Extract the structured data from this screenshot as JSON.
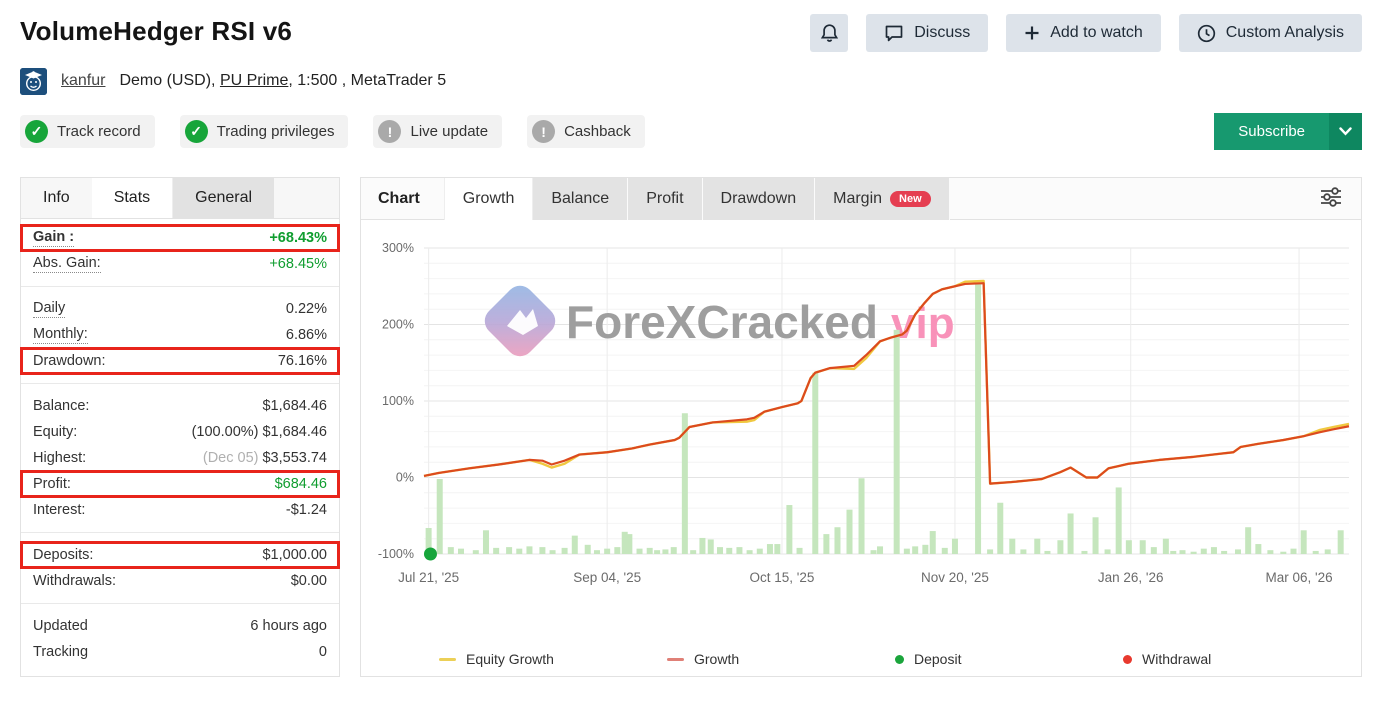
{
  "header": {
    "title": "VolumeHedger RSI v6",
    "actions": {
      "discuss": "Discuss",
      "add_to_watch": "Add to watch",
      "custom_analysis": "Custom Analysis"
    }
  },
  "account": {
    "username": "kanfur",
    "details_prefix": "Demo (USD),",
    "broker_link": "PU Prime",
    "details_suffix": ", 1:500 , MetaTrader 5"
  },
  "badges": [
    {
      "label": "Track record",
      "status": "ok"
    },
    {
      "label": "Trading privileges",
      "status": "ok"
    },
    {
      "label": "Live update",
      "status": "warn"
    },
    {
      "label": "Cashback",
      "status": "warn"
    }
  ],
  "subscribe": {
    "label": "Subscribe"
  },
  "info_panel": {
    "tabs": [
      {
        "label": "Info",
        "style": "plain"
      },
      {
        "label": "Stats",
        "style": "active"
      },
      {
        "label": "General",
        "style": "gray"
      }
    ],
    "rows": [
      {
        "label": "Gain :",
        "value": "+68.43%",
        "green": true,
        "bold": true,
        "hl": true,
        "dotted": true
      },
      {
        "label": "Abs. Gain:",
        "value": "+68.45%",
        "green": true,
        "dotted": true,
        "divider_after": true
      },
      {
        "label": "Daily",
        "value": "0.22%",
        "dotted": true
      },
      {
        "label": "Monthly:",
        "value": "6.86%",
        "dotted": true
      },
      {
        "label": "Drawdown:",
        "value": "76.16%",
        "hl": true,
        "divider_after": true
      },
      {
        "label": "Balance:",
        "value": "$1,684.46"
      },
      {
        "label": "Equity:",
        "note": "(100.00%)",
        "note_dark": true,
        "value": "$1,684.46"
      },
      {
        "label": "Highest:",
        "note": "(Dec 05)",
        "value": "$3,553.74"
      },
      {
        "label": "Profit:",
        "value": "$684.46",
        "green": true,
        "hl": true
      },
      {
        "label": "Interest:",
        "value": "-$1.24",
        "divider_after": true
      },
      {
        "label": "Deposits:",
        "value": "$1,000.00",
        "hl": true
      },
      {
        "label": "Withdrawals:",
        "value": "$0.00",
        "divider_after": true
      },
      {
        "label": "Updated",
        "value": "6 hours ago"
      },
      {
        "label": "Tracking",
        "value": "0"
      }
    ]
  },
  "chart_panel": {
    "label": "Chart",
    "tabs": [
      {
        "label": "Growth",
        "active": true
      },
      {
        "label": "Balance"
      },
      {
        "label": "Profit"
      },
      {
        "label": "Drawdown"
      },
      {
        "label": "Margin",
        "badge": "New"
      }
    ],
    "watermark": {
      "brand": "ForeXCracked",
      "suffix": "vip"
    }
  },
  "chart_data": {
    "type": "line",
    "title": "Growth chart with deposit volume bars",
    "y_axis": {
      "unit": "%",
      "range": [
        -100,
        300
      ],
      "ticks": [
        300,
        200,
        100,
        0,
        -100
      ],
      "minor_step": 20
    },
    "x_axis": {
      "ticks": [
        {
          "label": "Jul 21, '25",
          "pos": 0.005
        },
        {
          "label": "Sep 04, '25",
          "pos": 0.198
        },
        {
          "label": "Oct 15, '25",
          "pos": 0.387
        },
        {
          "label": "Nov 20, '25",
          "pos": 0.574
        },
        {
          "label": "Jan 26, '26",
          "pos": 0.764
        },
        {
          "label": "Mar 06, '26",
          "pos": 0.946
        }
      ]
    },
    "growth_pct": [
      [
        0.0,
        2
      ],
      [
        0.016,
        6
      ],
      [
        0.049,
        12
      ],
      [
        0.081,
        17
      ],
      [
        0.114,
        23
      ],
      [
        0.128,
        22
      ],
      [
        0.138,
        17
      ],
      [
        0.152,
        22
      ],
      [
        0.168,
        30
      ],
      [
        0.198,
        33
      ],
      [
        0.225,
        38
      ],
      [
        0.244,
        43
      ],
      [
        0.271,
        49
      ],
      [
        0.276,
        52
      ],
      [
        0.287,
        66
      ],
      [
        0.312,
        72
      ],
      [
        0.349,
        76
      ],
      [
        0.357,
        78
      ],
      [
        0.368,
        86
      ],
      [
        0.387,
        92
      ],
      [
        0.404,
        97
      ],
      [
        0.408,
        100
      ],
      [
        0.418,
        130
      ],
      [
        0.423,
        137
      ],
      [
        0.439,
        143
      ],
      [
        0.465,
        146
      ],
      [
        0.478,
        160
      ],
      [
        0.493,
        178
      ],
      [
        0.505,
        183
      ],
      [
        0.517,
        187
      ],
      [
        0.522,
        192
      ],
      [
        0.531,
        213
      ],
      [
        0.541,
        228
      ],
      [
        0.55,
        240
      ],
      [
        0.56,
        246
      ],
      [
        0.574,
        250
      ],
      [
        0.585,
        253
      ],
      [
        0.605,
        254
      ],
      [
        0.612,
        -8
      ],
      [
        0.635,
        -6
      ],
      [
        0.652,
        -4
      ],
      [
        0.668,
        -2
      ],
      [
        0.688,
        7
      ],
      [
        0.699,
        13
      ],
      [
        0.716,
        0
      ],
      [
        0.728,
        0
      ],
      [
        0.74,
        12
      ],
      [
        0.751,
        15
      ],
      [
        0.762,
        18
      ],
      [
        0.795,
        23
      ],
      [
        0.832,
        27
      ],
      [
        0.86,
        31
      ],
      [
        0.875,
        33
      ],
      [
        0.883,
        40
      ],
      [
        0.902,
        44
      ],
      [
        0.929,
        49
      ],
      [
        0.951,
        54
      ],
      [
        0.968,
        59
      ],
      [
        0.983,
        63
      ],
      [
        1.0,
        67
      ]
    ],
    "equity_deviation_ranges": [
      {
        "range": [
          0.12,
          0.158
        ],
        "delta": -4
      },
      {
        "range": [
          0.34,
          0.36
        ],
        "delta": -3
      },
      {
        "range": [
          0.455,
          0.48
        ],
        "delta": -4
      },
      {
        "range": [
          0.575,
          0.607
        ],
        "delta": 3
      },
      {
        "range": [
          0.955,
          1.0
        ],
        "delta": 3
      }
    ],
    "bars_pct": [
      [
        0.005,
        -66
      ],
      [
        0.017,
        -2
      ],
      [
        0.029,
        -91
      ],
      [
        0.04,
        -93
      ],
      [
        0.056,
        -95
      ],
      [
        0.067,
        -69
      ],
      [
        0.078,
        -92
      ],
      [
        0.092,
        -91
      ],
      [
        0.103,
        -93
      ],
      [
        0.114,
        -90
      ],
      [
        0.128,
        -91
      ],
      [
        0.139,
        -95
      ],
      [
        0.152,
        -92
      ],
      [
        0.163,
        -76
      ],
      [
        0.177,
        -88
      ],
      [
        0.187,
        -95
      ],
      [
        0.198,
        -93
      ],
      [
        0.209,
        -91
      ],
      [
        0.217,
        -71
      ],
      [
        0.222,
        -74
      ],
      [
        0.233,
        -93
      ],
      [
        0.244,
        -92
      ],
      [
        0.252,
        -95
      ],
      [
        0.261,
        -94
      ],
      [
        0.27,
        -91
      ],
      [
        0.282,
        84
      ],
      [
        0.291,
        -95
      ],
      [
        0.301,
        -79
      ],
      [
        0.31,
        -81
      ],
      [
        0.32,
        -91
      ],
      [
        0.33,
        -92
      ],
      [
        0.341,
        -91
      ],
      [
        0.352,
        -95
      ],
      [
        0.363,
        -93
      ],
      [
        0.374,
        -87
      ],
      [
        0.382,
        -87
      ],
      [
        0.395,
        -36
      ],
      [
        0.406,
        -92
      ],
      [
        0.423,
        137
      ],
      [
        0.435,
        -74
      ],
      [
        0.447,
        -65
      ],
      [
        0.46,
        -42
      ],
      [
        0.473,
        -1
      ],
      [
        0.486,
        -95
      ],
      [
        0.493,
        -90
      ],
      [
        0.511,
        193
      ],
      [
        0.522,
        -93
      ],
      [
        0.531,
        -90
      ],
      [
        0.542,
        -88
      ],
      [
        0.55,
        -70
      ],
      [
        0.563,
        -92
      ],
      [
        0.574,
        -80
      ],
      [
        0.599,
        253
      ],
      [
        0.612,
        -94
      ],
      [
        0.623,
        -33
      ],
      [
        0.636,
        -80
      ],
      [
        0.648,
        -94
      ],
      [
        0.663,
        -80
      ],
      [
        0.674,
        -96
      ],
      [
        0.688,
        -82
      ],
      [
        0.699,
        -47
      ],
      [
        0.714,
        -96
      ],
      [
        0.726,
        -52
      ],
      [
        0.739,
        -94
      ],
      [
        0.751,
        -13
      ],
      [
        0.762,
        -82
      ],
      [
        0.777,
        -82
      ],
      [
        0.789,
        -91
      ],
      [
        0.802,
        -80
      ],
      [
        0.81,
        -96
      ],
      [
        0.82,
        -95
      ],
      [
        0.832,
        -97
      ],
      [
        0.843,
        -93
      ],
      [
        0.854,
        -91
      ],
      [
        0.865,
        -96
      ],
      [
        0.88,
        -94
      ],
      [
        0.891,
        -65
      ],
      [
        0.902,
        -87
      ],
      [
        0.915,
        -95
      ],
      [
        0.929,
        -97
      ],
      [
        0.94,
        -93
      ],
      [
        0.951,
        -69
      ],
      [
        0.964,
        -96
      ],
      [
        0.977,
        -94
      ],
      [
        0.991,
        -69
      ]
    ],
    "deposit_markers": [
      {
        "pos": 0.007,
        "value": -100
      }
    ],
    "legend": [
      {
        "label": "Equity Growth",
        "type": "dash",
        "color": "#ecd057"
      },
      {
        "label": "Growth",
        "type": "dash",
        "color": "#e08077"
      },
      {
        "label": "Deposit",
        "type": "dot",
        "color": "#1ba53c"
      },
      {
        "label": "Withdrawal",
        "type": "dot",
        "color": "#e8392e"
      }
    ],
    "colors": {
      "growth_line": "#dc4a1e",
      "equity_line": "#f0c840",
      "bar": "#c5e6bd",
      "deposit_dot": "#16a53a",
      "grid_minor": "#f4f4f4",
      "grid_major": "#e4e4e4",
      "grid_vertical": "#ececec",
      "axis_text": "#6b6b6b",
      "watermark_text": "#9e9e9e",
      "watermark_suffix": "#f892b9"
    }
  },
  "ui_colors": {
    "highlight_box": "#e8241b",
    "positive_green": "#0f9d2f",
    "subscribe_green": "#17996f",
    "badge_ok": "#17a53a",
    "badge_warn": "#a9a9a9",
    "top_button_bg": "#dde3ea",
    "new_pill": "#e53e51"
  }
}
